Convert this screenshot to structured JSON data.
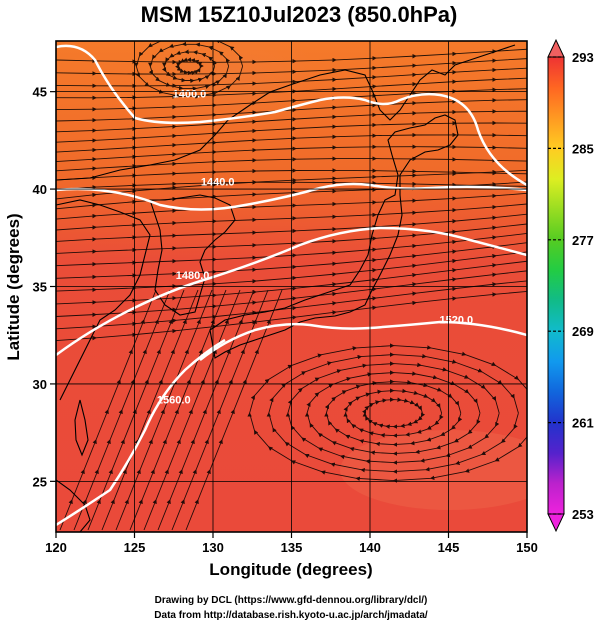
{
  "title": "MSM 15Z10Jul2023 (850.0hPa)",
  "xaxis": {
    "label": "Longitude (degrees)",
    "min": 120,
    "max": 150,
    "ticks": [
      "120",
      "125",
      "130",
      "135",
      "140",
      "145",
      "150"
    ]
  },
  "yaxis": {
    "label": "Latitude  (degrees)",
    "min": 22.4,
    "max": 47.6,
    "ticks": [
      "25",
      "30",
      "35",
      "40",
      "45"
    ]
  },
  "colorbar": {
    "min": 253,
    "max": 293,
    "ticks": [
      "293",
      "285",
      "277",
      "269",
      "261",
      "253"
    ],
    "colors": [
      "#ee22dd",
      "#bb22cc",
      "#5522cc",
      "#2233cc",
      "#1166dd",
      "#1199ee",
      "#11bbcc",
      "#11bb88",
      "#22cc44",
      "#55cc22",
      "#99dd22",
      "#ddee22",
      "#ffcc22",
      "#ff9922",
      "#ff6622",
      "#ee3333"
    ]
  },
  "contours": [
    {
      "label": "1400.0",
      "lon": 128.5,
      "lat": 44.9
    },
    {
      "label": "1440.0",
      "lon": 130.3,
      "lat": 40.4
    },
    {
      "label": "1480.0",
      "lon": 128.7,
      "lat": 35.6
    },
    {
      "label": "1520.0",
      "lon": 145.5,
      "lat": 33.3
    },
    {
      "label": "1560.0",
      "lon": 127.5,
      "lat": 29.2
    }
  ],
  "credits": {
    "line1": "Drawing by DCL (https://www.gfd-dennou.org/library/dcl/)",
    "line2": "Data from http://database.rish.kyoto-u.ac.jp/arch/jmadata/"
  },
  "map_features": {
    "base_field": "temperature",
    "base_color_dominant": "#ee4433",
    "vortex_centers": [
      {
        "name": "cyclone-north",
        "lon": 128.5,
        "lat": 46.3
      },
      {
        "name": "anticyclone-south",
        "lon": 141.5,
        "lat": 28.5
      }
    ]
  }
}
